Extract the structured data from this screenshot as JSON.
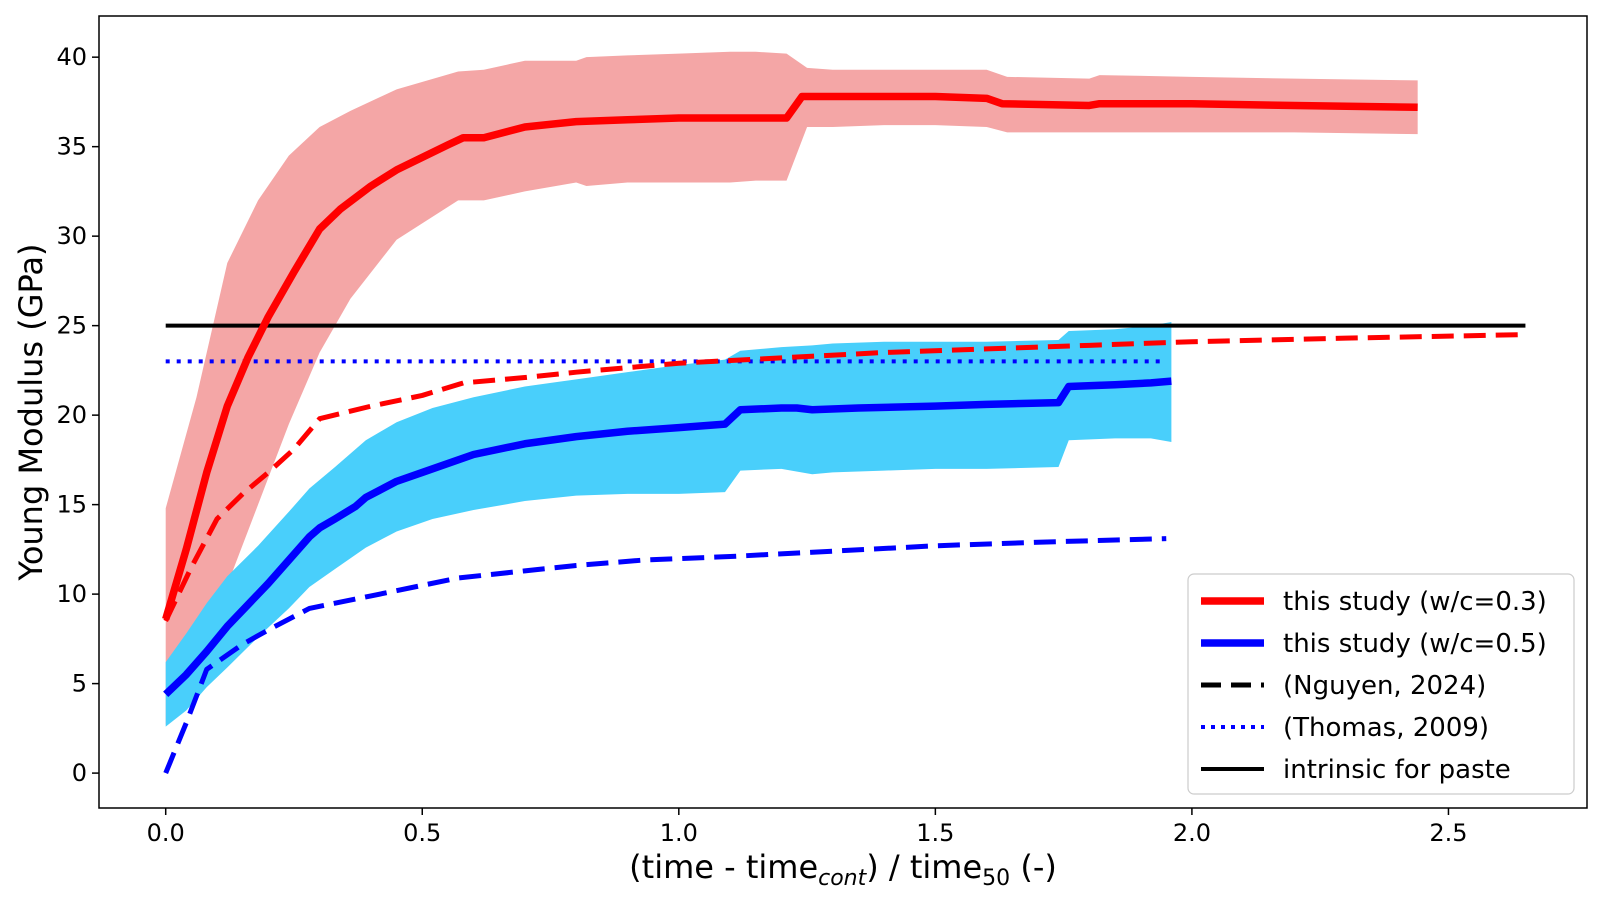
{
  "chart_data": {
    "type": "line",
    "title": "",
    "xlabel_parts": {
      "pre": "(time - time",
      "sub1": "cont",
      "mid": ") / time",
      "sub2": "50",
      "post": " (-)"
    },
    "ylabel": "Young Modulus (GPa)",
    "xlim": [
      -0.13,
      2.77
    ],
    "ylim": [
      -1.95,
      42.3
    ],
    "xticks": [
      0.0,
      0.5,
      1.0,
      1.5,
      2.0,
      2.5
    ],
    "xtick_labels": [
      "0.0",
      "0.5",
      "1.0",
      "1.5",
      "2.0",
      "2.5"
    ],
    "yticks": [
      0,
      5,
      10,
      15,
      20,
      25,
      30,
      35,
      40
    ],
    "ytick_labels": [
      "0",
      "5",
      "10",
      "15",
      "20",
      "25",
      "30",
      "35",
      "40"
    ],
    "grid": false,
    "legend_position": "lower-right",
    "bands": [
      {
        "name": "this study (w/c=0.3) range",
        "color": "#f4a6a6",
        "x": [
          0.0,
          0.06,
          0.12,
          0.18,
          0.24,
          0.3,
          0.36,
          0.45,
          0.57,
          0.62,
          0.7,
          0.8,
          0.82,
          0.9,
          1.0,
          1.1,
          1.15,
          1.21,
          1.25,
          1.3,
          1.4,
          1.5,
          1.6,
          1.64,
          1.8,
          1.82,
          2.0,
          2.2,
          2.44
        ],
        "upper": [
          14.8,
          21.0,
          28.5,
          32.0,
          34.5,
          36.1,
          37.0,
          38.2,
          39.2,
          39.3,
          39.8,
          39.8,
          40.0,
          40.1,
          40.2,
          40.3,
          40.3,
          40.2,
          39.4,
          39.3,
          39.3,
          39.3,
          39.3,
          38.9,
          38.8,
          39.0,
          38.9,
          38.8,
          38.7
        ],
        "lower": [
          2.7,
          6.0,
          10.5,
          15.0,
          19.5,
          23.5,
          26.5,
          29.8,
          32.0,
          32.0,
          32.5,
          33.0,
          32.8,
          33.0,
          33.0,
          33.0,
          33.1,
          33.1,
          36.1,
          36.1,
          36.2,
          36.2,
          36.1,
          35.8,
          35.8,
          35.8,
          35.8,
          35.8,
          35.7
        ]
      },
      {
        "name": "this study (w/c=0.5) range",
        "color": "#49cffb",
        "x": [
          0.0,
          0.04,
          0.08,
          0.12,
          0.18,
          0.24,
          0.28,
          0.33,
          0.39,
          0.45,
          0.52,
          0.6,
          0.7,
          0.8,
          0.9,
          1.0,
          1.09,
          1.12,
          1.2,
          1.26,
          1.3,
          1.4,
          1.5,
          1.6,
          1.74,
          1.76,
          1.85,
          1.92,
          1.96
        ],
        "upper": [
          6.2,
          7.8,
          9.5,
          11.0,
          12.7,
          14.6,
          15.9,
          17.1,
          18.6,
          19.6,
          20.4,
          21.0,
          21.6,
          22.0,
          22.4,
          22.8,
          23.1,
          23.6,
          23.8,
          23.9,
          24.0,
          24.1,
          24.1,
          24.1,
          24.2,
          24.7,
          24.8,
          25.0,
          25.2
        ],
        "lower": [
          2.6,
          3.5,
          4.8,
          5.9,
          7.6,
          9.2,
          10.4,
          11.4,
          12.6,
          13.5,
          14.2,
          14.7,
          15.2,
          15.5,
          15.6,
          15.6,
          15.7,
          16.9,
          17.0,
          16.7,
          16.8,
          16.9,
          17.0,
          17.0,
          17.1,
          18.6,
          18.7,
          18.7,
          18.5
        ]
      }
    ],
    "series": [
      {
        "name": "intrinsic for paste",
        "style": "solid",
        "color": "#000000",
        "width": 4,
        "x": [
          0.0,
          2.65
        ],
        "y": [
          25.0,
          25.0
        ]
      },
      {
        "name": "(Thomas, 2009)",
        "style": "dotted",
        "color": "#0000ff",
        "width": 4,
        "x": [
          0.0,
          1.95
        ],
        "y": [
          23.0,
          23.0
        ]
      },
      {
        "name": "(Nguyen, 2024) w/c=0.3",
        "style": "dashed",
        "color": "#ff0000",
        "width": 5,
        "x": [
          0.0,
          0.05,
          0.1,
          0.15,
          0.2,
          0.25,
          0.3,
          0.4,
          0.5,
          0.58,
          0.7,
          0.8,
          1.0,
          1.2,
          1.4,
          1.6,
          1.8,
          2.0,
          2.3,
          2.65
        ],
        "y": [
          8.5,
          11.5,
          14.2,
          15.6,
          16.8,
          18.1,
          19.8,
          20.5,
          21.1,
          21.8,
          22.1,
          22.4,
          22.9,
          23.2,
          23.5,
          23.7,
          23.9,
          24.1,
          24.3,
          24.5
        ]
      },
      {
        "name": "(Nguyen, 2024) w/c=0.5",
        "style": "dashed",
        "color": "#0000ff",
        "width": 5,
        "x": [
          0.0,
          0.04,
          0.08,
          0.15,
          0.2,
          0.28,
          0.4,
          0.57,
          0.7,
          0.8,
          0.93,
          1.1,
          1.3,
          1.5,
          1.7,
          1.95
        ],
        "y": [
          0.0,
          2.8,
          5.8,
          7.2,
          8.0,
          9.2,
          9.9,
          10.9,
          11.3,
          11.6,
          11.9,
          12.1,
          12.4,
          12.7,
          12.9,
          13.1
        ]
      },
      {
        "name": "this study (w/c=0.5)",
        "style": "solid",
        "color": "#0000ff",
        "width": 7.5,
        "x": [
          0.0,
          0.04,
          0.08,
          0.12,
          0.16,
          0.2,
          0.24,
          0.28,
          0.3,
          0.33,
          0.37,
          0.39,
          0.45,
          0.5,
          0.6,
          0.7,
          0.8,
          0.9,
          1.0,
          1.09,
          1.12,
          1.2,
          1.23,
          1.26,
          1.35,
          1.5,
          1.6,
          1.74,
          1.76,
          1.85,
          1.92,
          1.96
        ],
        "y": [
          4.4,
          5.5,
          6.8,
          8.2,
          9.4,
          10.6,
          11.9,
          13.2,
          13.7,
          14.2,
          14.9,
          15.4,
          16.3,
          16.8,
          17.8,
          18.4,
          18.8,
          19.1,
          19.3,
          19.5,
          20.3,
          20.4,
          20.4,
          20.3,
          20.4,
          20.5,
          20.6,
          20.7,
          21.6,
          21.7,
          21.8,
          21.9
        ]
      },
      {
        "name": "this study (w/c=0.3)",
        "style": "solid",
        "color": "#ff0000",
        "width": 7.5,
        "x": [
          0.0,
          0.04,
          0.08,
          0.12,
          0.16,
          0.2,
          0.25,
          0.3,
          0.34,
          0.4,
          0.45,
          0.5,
          0.55,
          0.58,
          0.62,
          0.7,
          0.8,
          0.9,
          1.0,
          1.1,
          1.21,
          1.24,
          1.3,
          1.4,
          1.5,
          1.6,
          1.63,
          1.8,
          1.82,
          2.0,
          2.2,
          2.44
        ],
        "y": [
          8.6,
          12.5,
          16.8,
          20.5,
          23.2,
          25.5,
          28.0,
          30.4,
          31.5,
          32.8,
          33.7,
          34.4,
          35.1,
          35.5,
          35.5,
          36.1,
          36.4,
          36.5,
          36.6,
          36.6,
          36.6,
          37.8,
          37.8,
          37.8,
          37.8,
          37.7,
          37.4,
          37.3,
          37.4,
          37.4,
          37.3,
          37.2
        ]
      }
    ],
    "legend": [
      {
        "label": "this study (w/c=0.3)",
        "style": "solid",
        "color": "#ff0000",
        "width": 7.5
      },
      {
        "label": "this study (w/c=0.5)",
        "style": "solid",
        "color": "#0000ff",
        "width": 7.5
      },
      {
        "label": "(Nguyen, 2024)",
        "style": "dashed",
        "color": "#000000",
        "width": 5
      },
      {
        "label": "(Thomas, 2009)",
        "style": "dotted",
        "color": "#0000ff",
        "width": 4
      },
      {
        "label": "intrinsic for paste",
        "style": "solid",
        "color": "#000000",
        "width": 4
      }
    ]
  }
}
